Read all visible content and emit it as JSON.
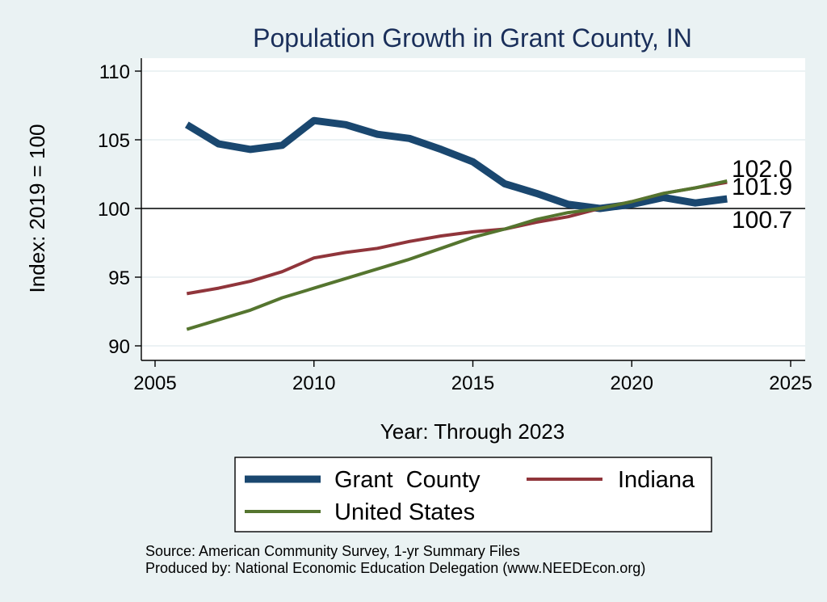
{
  "chart_data": {
    "type": "line",
    "title": "Population Growth in Grant County, IN",
    "xlabel": "Year: Through 2023",
    "ylabel": "Index: 2019 = 100",
    "xlim": [
      2005,
      2025
    ],
    "ylim": [
      89.5,
      111
    ],
    "xticks": [
      2005,
      2010,
      2015,
      2020,
      2025
    ],
    "xtick_labels": [
      "2005",
      "2010",
      "2015",
      "2020",
      "2025"
    ],
    "yticks": [
      90,
      95,
      100,
      105,
      110
    ],
    "ytick_labels": [
      "90",
      "95",
      "100",
      "105",
      "110"
    ],
    "grid": true,
    "reference_line": 100,
    "x": [
      2006,
      2007,
      2008,
      2009,
      2010,
      2011,
      2012,
      2013,
      2014,
      2015,
      2016,
      2017,
      2018,
      2019,
      2020,
      2021,
      2022,
      2023
    ],
    "series": [
      {
        "name": "Grant  County",
        "color": "#1a476f",
        "width": 9,
        "values": [
          106.1,
          104.7,
          104.3,
          104.6,
          106.4,
          106.1,
          105.4,
          105.1,
          104.3,
          103.4,
          101.8,
          101.1,
          100.3,
          100.0,
          100.3,
          100.8,
          100.4,
          100.7
        ]
      },
      {
        "name": "Indiana",
        "color": "#90353b",
        "width": 4,
        "values": [
          93.8,
          94.2,
          94.7,
          95.4,
          96.4,
          96.8,
          97.1,
          97.6,
          98.0,
          98.3,
          98.5,
          99.0,
          99.4,
          100.0,
          100.5,
          101.1,
          101.5,
          101.9
        ]
      },
      {
        "name": "United States",
        "color": "#55752f",
        "width": 4,
        "values": [
          91.2,
          91.9,
          92.6,
          93.5,
          94.2,
          94.9,
          95.6,
          96.3,
          97.1,
          97.9,
          98.5,
          99.2,
          99.7,
          100.0,
          100.5,
          101.1,
          101.5,
          102.0
        ]
      }
    ],
    "end_labels": [
      "102.0",
      "101.9",
      "100.7"
    ],
    "legend_position": "bottom",
    "source_lines": [
      "Source: American Community Survey, 1-yr Summary Files",
      "Produced by: National Economic Education Delegation (www.NEEDEcon.org)"
    ]
  }
}
